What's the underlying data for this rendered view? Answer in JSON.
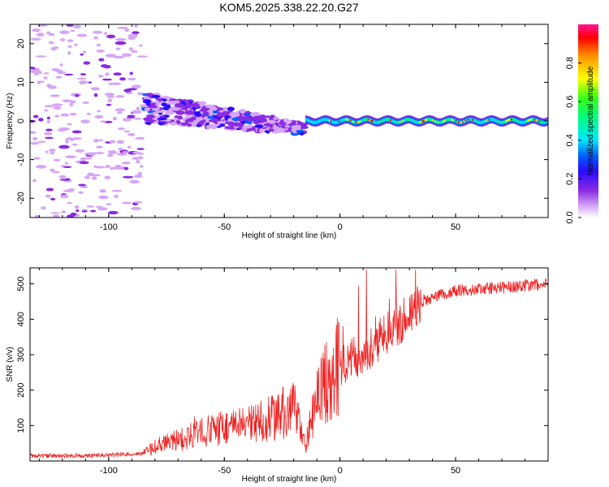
{
  "title": "KOM5.2025.338.22.20.G27",
  "chart_data": [
    {
      "type": "heatmap",
      "xlabel": "Height of straight line (km)",
      "ylabel": "Frequency (Hz)",
      "xlim": [
        -134,
        90
      ],
      "ylim": [
        -25,
        25
      ],
      "xticks": [
        -100,
        -50,
        0,
        50
      ],
      "xtick_labels": [
        "-100",
        "-50",
        "0",
        "50"
      ],
      "yticks": [
        -20,
        -10,
        0,
        10,
        20
      ],
      "ytick_labels": [
        "-20",
        "-10",
        "0",
        "10",
        "20"
      ],
      "colorbar": {
        "label": "Normalized spectral amplitude",
        "range": [
          0,
          1
        ],
        "ticks": [
          0.0,
          0.2,
          0.4,
          0.6,
          0.8
        ],
        "tick_labels": [
          "0.0",
          "0.2",
          "0.4",
          "0.6",
          "0.8"
        ],
        "colormap": [
          "#ffffff",
          "#d6a6f7",
          "#8a2be2",
          "#2a0aff",
          "#0060ff",
          "#00e5ff",
          "#00ff7f",
          "#39ff14",
          "#ffff00",
          "#ff8c00",
          "#ff0000",
          "#ff1493"
        ]
      },
      "description_series": [
        {
          "name": "scattered noise region",
          "x_range": [
            -134,
            -85
          ],
          "freq_range": [
            -25,
            25
          ],
          "amplitude": 0.05
        },
        {
          "name": "broadened signal",
          "x_range": [
            -85,
            -15
          ],
          "freq_range": [
            -5,
            9
          ],
          "amplitude": 0.15
        },
        {
          "name": "narrow signal line",
          "x_range": [
            -15,
            90
          ],
          "freq_center": 0,
          "amplitude": 0.7
        }
      ]
    },
    {
      "type": "line",
      "xlabel": "Height of straight line (km)",
      "ylabel": "SNR (v/v)",
      "xlim": [
        -134,
        90
      ],
      "ylim": [
        0,
        545
      ],
      "xticks": [
        -100,
        -50,
        0,
        50
      ],
      "xtick_labels": [
        "-100",
        "-50",
        "0",
        "50"
      ],
      "yticks": [
        100,
        200,
        300,
        400,
        500
      ],
      "ytick_labels": [
        "100",
        "200",
        "300",
        "400",
        "500"
      ],
      "color": "#ee2222",
      "series": [
        {
          "name": "SNR",
          "x": [
            -134,
            -110,
            -95,
            -85,
            -80,
            -70,
            -60,
            -50,
            -40,
            -30,
            -20,
            -15,
            -10,
            -5,
            0,
            5,
            10,
            15,
            20,
            25,
            30,
            35,
            40,
            50,
            60,
            70,
            80,
            90
          ],
          "values": [
            15,
            15,
            18,
            22,
            40,
            60,
            80,
            95,
            100,
            120,
            150,
            40,
            180,
            240,
            270,
            290,
            300,
            330,
            360,
            380,
            420,
            450,
            460,
            480,
            485,
            490,
            495,
            500
          ]
        }
      ]
    }
  ]
}
